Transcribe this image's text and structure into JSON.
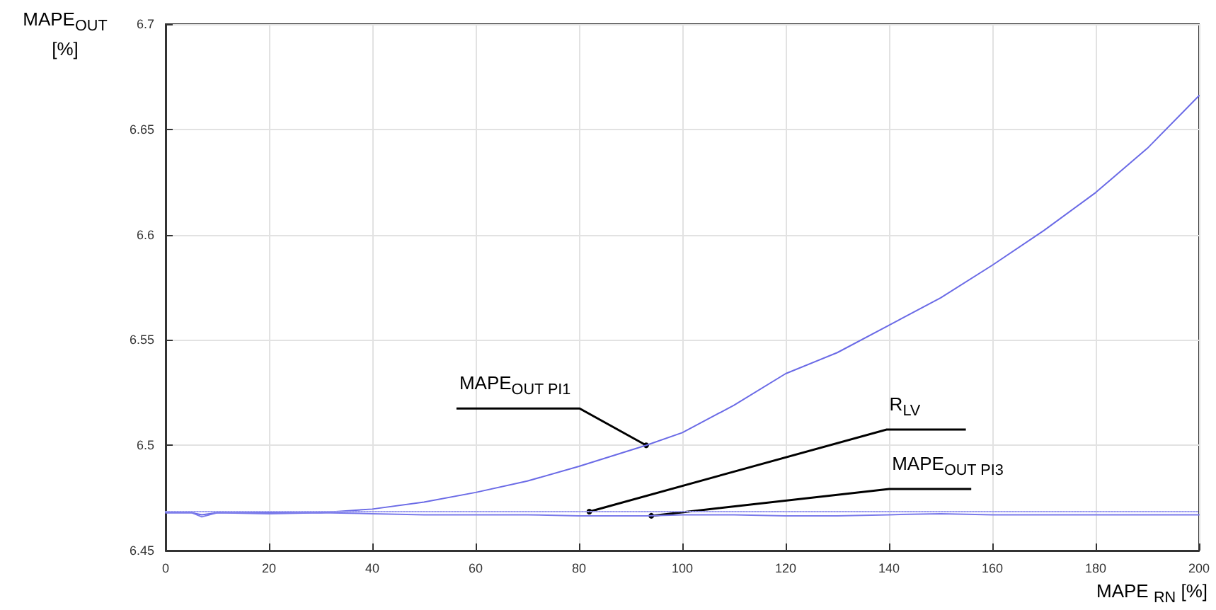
{
  "chart_data": {
    "type": "line",
    "xlabel": "MAPE $_{RN}$ [%]",
    "ylabel": "MAPE$_{OUT}$ [%]",
    "x": [
      0,
      5,
      7,
      10,
      20,
      30,
      40,
      50,
      60,
      70,
      80,
      93,
      100,
      110,
      120,
      130,
      140,
      150,
      160,
      170,
      180,
      190,
      200
    ],
    "series": [
      {
        "color": "#6a6ae6",
        "values": [
          6.468,
          6.468,
          6.467,
          6.468,
          6.468,
          6.468,
          6.4697,
          6.473,
          6.4776,
          6.483,
          6.49,
          6.5,
          6.506,
          6.519,
          6.534,
          6.544,
          6.557,
          6.57,
          6.5855,
          6.602,
          6.62,
          6.641,
          6.666
        ]
      },
      {
        "color": "#9a9af0",
        "line_style": "dotted",
        "values": [
          6.4685,
          6.4685,
          6.4685,
          6.4685,
          6.4685,
          6.4685,
          6.4685,
          6.4685,
          6.4685,
          6.4685,
          6.4685,
          6.4685,
          6.4685,
          6.4685,
          6.4685,
          6.4685,
          6.4685,
          6.4685,
          6.4685,
          6.4685,
          6.4685,
          6.4685,
          6.4685
        ]
      },
      {
        "color": "#7a7aea",
        "values": [
          6.468,
          6.468,
          6.466,
          6.468,
          6.4675,
          6.468,
          6.4675,
          6.467,
          6.467,
          6.467,
          6.4665,
          6.4665,
          6.467,
          6.467,
          6.4665,
          6.4665,
          6.467,
          6.4675,
          6.467,
          6.467,
          6.467,
          6.467,
          6.467
        ]
      }
    ],
    "annotations": [
      {
        "text": "MAPE$_{OUT PI1}$",
        "x": 93,
        "y": 6.5
      },
      {
        "text": "R$_{LV}$",
        "x": 82,
        "y": 6.4685
      },
      {
        "text": "MAPE$_{OUT PI3}$",
        "x": 94,
        "y": 6.4665
      }
    ],
    "xlim": [
      0,
      200
    ],
    "xticks": [
      0,
      20,
      40,
      60,
      80,
      100,
      120,
      140,
      160,
      180,
      200
    ],
    "ylim": [
      6.45,
      6.7
    ],
    "yticks": [
      6.45,
      6.5,
      6.55,
      6.6,
      6.65,
      6.7
    ],
    "grid": true,
    "marker": "none"
  }
}
